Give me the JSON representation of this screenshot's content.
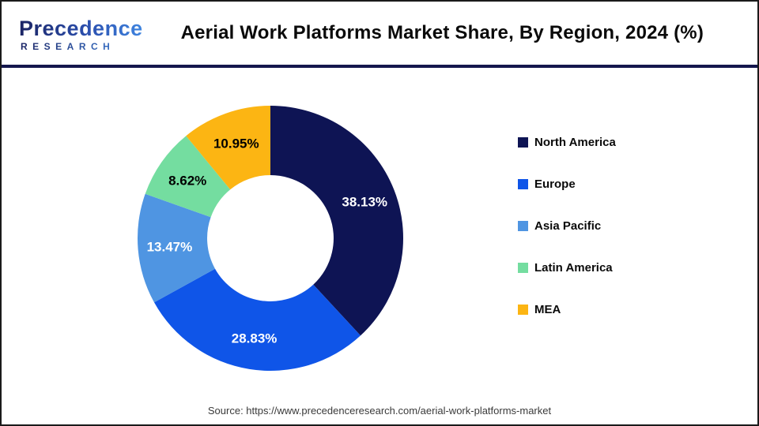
{
  "header": {
    "logo": {
      "line1": "Precedence",
      "line2": "RESEARCH"
    },
    "title": "Aerial Work Platforms Market Share, By Region, 2024 (%)"
  },
  "chart_data": {
    "type": "pie",
    "subtype": "donut",
    "title": "Aerial Work Platforms Market Share, By Region, 2024 (%)",
    "categories": [
      "North America",
      "Europe",
      "Asia Pacific",
      "Latin America",
      "MEA"
    ],
    "values": [
      38.13,
      28.83,
      13.47,
      8.62,
      10.95
    ],
    "data_labels": [
      "38.13%",
      "28.83%",
      "13.47%",
      "8.62%",
      "10.95%"
    ],
    "colors": [
      "#0e1454",
      "#0f55e8",
      "#4f95e2",
      "#74dda0",
      "#fcb513"
    ],
    "data_label_text_colors": [
      "#ffffff",
      "#ffffff",
      "#ffffff",
      "#000000",
      "#000000"
    ],
    "start_angle_deg": 0,
    "direction": "clockwise",
    "inner_radius_ratio": 0.476,
    "legend_position": "right"
  },
  "footer": {
    "source": "Source: https://www.precedenceresearch.com/aerial-work-platforms-market"
  },
  "colors": {
    "divider": "#14174d",
    "page_border": "#1a1a1a",
    "title_text": "#0a0a0a",
    "source_text": "#3a3a3a",
    "logo_dark": "#1b2464",
    "logo_blue": "#3f85e0"
  }
}
